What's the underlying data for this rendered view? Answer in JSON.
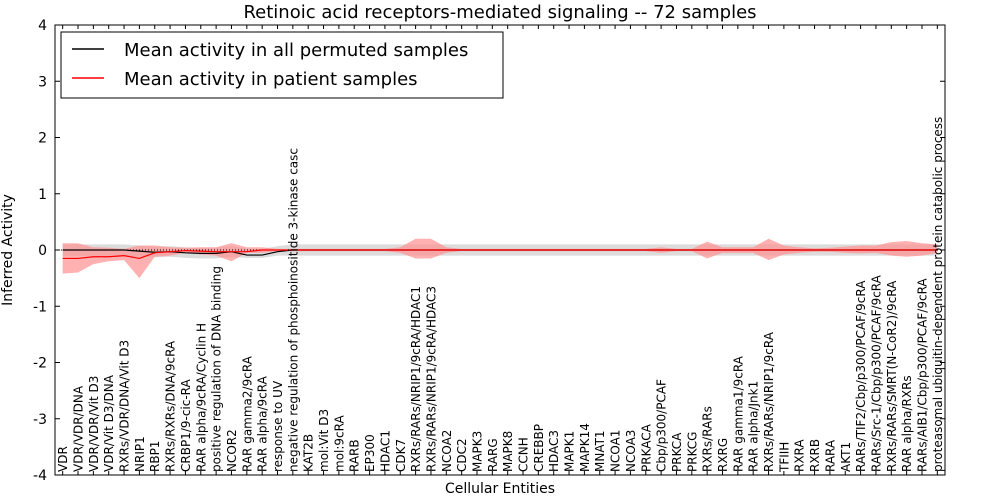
{
  "chart_data": {
    "type": "line",
    "title": "Retinoic acid receptors-mediated signaling -- 72 samples",
    "xlabel": "Cellular Entities",
    "ylabel": "Inferred Activity",
    "ylim": [
      -4,
      4
    ],
    "yticks": [
      -4,
      -3,
      -2,
      -1,
      0,
      1,
      2,
      3,
      4
    ],
    "legend_position": "top-left",
    "categories": [
      "VDR",
      "VDR/VDR/DNA",
      "VDR/VDR/Vit D3",
      "VDR/Vit D3/DNA",
      "RXRs/VDR/DNA/Vit D3",
      "NRIP1",
      "RBP1",
      "RXRs/RXRs/DNA/9cRA",
      "CRBP1/9-cic-RA",
      "RAR alpha/9cRA/Cyclin H",
      "positive regulation of DNA binding",
      "NCOR2",
      "RAR gamma2/9cRA",
      "RAR alpha/9cRA",
      "response to UV",
      "negative regulation of phosphoinositide 3-kinase casc",
      "KAT2B",
      "mol:Vit D3",
      "mol:9cRA",
      "RARB",
      "EP300",
      "HDAC1",
      "CDK7",
      "RXRs/RARs/NRIP1/9cRA/HDAC1",
      "RXRs/RARs/NRIP1/9cRA/HDAC3",
      "NCOA2",
      "CDC2",
      "MAPK3",
      "RARG",
      "MAPK8",
      "CCNH",
      "CREBBP",
      "HDAC3",
      "MAPK1",
      "MAPK14",
      "MNAT1",
      "NCOA1",
      "NCOA3",
      "PRKACA",
      "Cbp/p300/PCAF",
      "PRKCA",
      "PRKCG",
      "RXRs/RARs",
      "RXRG",
      "RAR gamma1/9cRA",
      "RAR alpha/Jnk1",
      "RXRs/RARs/NRIP1/9cRA",
      "TFIIH",
      "RXRA",
      "RXRB",
      "RARA",
      "AKT1",
      "RARs/TIF2/Cbp/p300/PCAF/9cRA",
      "RARs/Src-1/Cbp/p300/PCAF/9cRA",
      "RXRs/RARs/SMRT(N-CoR2)/9cRA",
      "RAR alpha/RXRs",
      "RARs/AIB1/Cbp/p300/PCAF/9cRA",
      "proteasomal ubiquitin-dependent protein catabolic process"
    ],
    "series": [
      {
        "name": "Mean activity in all permuted samples",
        "color": "#000000",
        "values": [
          0,
          0,
          0,
          0,
          0,
          -0.02,
          -0.04,
          -0.03,
          -0.05,
          -0.06,
          -0.06,
          -0.03,
          -0.09,
          -0.09,
          -0.03,
          0,
          0,
          0,
          0,
          0,
          0,
          0,
          0,
          0,
          0,
          0,
          0,
          0,
          0,
          0,
          0,
          0,
          0,
          0,
          0,
          0,
          0,
          0,
          0,
          0,
          0,
          0,
          0,
          0,
          0,
          0,
          0,
          0,
          0,
          0,
          0,
          0,
          0,
          0,
          0,
          0,
          0,
          0
        ],
        "band": {
          "color": "#c0c0c0",
          "lower": [
            -0.1,
            -0.1,
            -0.1,
            -0.1,
            -0.1,
            -0.12,
            -0.13,
            -0.12,
            -0.14,
            -0.15,
            -0.15,
            -0.12,
            -0.14,
            -0.14,
            -0.1,
            -0.1,
            -0.1,
            -0.1,
            -0.1,
            -0.1,
            -0.1,
            -0.1,
            -0.1,
            -0.1,
            -0.1,
            -0.1,
            -0.1,
            -0.1,
            -0.1,
            -0.1,
            -0.1,
            -0.1,
            -0.1,
            -0.1,
            -0.1,
            -0.1,
            -0.1,
            -0.1,
            -0.1,
            -0.1,
            -0.1,
            -0.1,
            -0.1,
            -0.1,
            -0.1,
            -0.1,
            -0.1,
            -0.1,
            -0.1,
            -0.1,
            -0.1,
            -0.1,
            -0.1,
            -0.1,
            -0.1,
            -0.1,
            -0.1,
            -0.1
          ],
          "upper": [
            0.1,
            0.1,
            0.1,
            0.1,
            0.1,
            0.08,
            0.06,
            0.07,
            0.05,
            0.04,
            0.04,
            0.07,
            0.02,
            0.02,
            0.07,
            0.1,
            0.1,
            0.1,
            0.1,
            0.1,
            0.1,
            0.1,
            0.1,
            0.1,
            0.1,
            0.1,
            0.1,
            0.1,
            0.1,
            0.1,
            0.1,
            0.1,
            0.1,
            0.1,
            0.1,
            0.1,
            0.1,
            0.1,
            0.1,
            0.1,
            0.1,
            0.1,
            0.1,
            0.1,
            0.1,
            0.1,
            0.1,
            0.1,
            0.1,
            0.1,
            0.1,
            0.1,
            0.1,
            0.1,
            0.1,
            0.1,
            0.1,
            0.1
          ]
        }
      },
      {
        "name": "Mean activity in patient samples",
        "color": "#ff0000",
        "values": [
          -0.15,
          -0.15,
          -0.12,
          -0.12,
          -0.1,
          -0.15,
          -0.05,
          -0.03,
          -0.01,
          -0.02,
          -0.03,
          -0.03,
          -0.03,
          0,
          0,
          0,
          0,
          0,
          0,
          0,
          0,
          0,
          0,
          0,
          0,
          0,
          0,
          0,
          0,
          0,
          0,
          0,
          0,
          0,
          0,
          0,
          0,
          0,
          0,
          0,
          0,
          0,
          0,
          0,
          0,
          0,
          0,
          0,
          0,
          0,
          0,
          0,
          0,
          0,
          0,
          0,
          0,
          0
        ],
        "band": {
          "color": "#ff9090",
          "lower": [
            -0.42,
            -0.4,
            -0.25,
            -0.2,
            -0.18,
            -0.5,
            -0.12,
            -0.1,
            -0.05,
            -0.08,
            -0.1,
            -0.2,
            -0.05,
            -0.05,
            -0.02,
            -0.02,
            -0.02,
            -0.02,
            -0.02,
            -0.02,
            -0.02,
            -0.02,
            -0.05,
            -0.15,
            -0.15,
            -0.05,
            -0.02,
            -0.02,
            -0.02,
            -0.02,
            -0.02,
            -0.02,
            -0.02,
            -0.02,
            -0.02,
            -0.02,
            -0.02,
            -0.02,
            -0.02,
            -0.05,
            -0.02,
            -0.02,
            -0.15,
            -0.05,
            -0.05,
            -0.05,
            -0.18,
            -0.08,
            -0.05,
            -0.03,
            -0.03,
            -0.05,
            -0.06,
            -0.05,
            -0.1,
            -0.12,
            -0.1,
            -0.05
          ],
          "upper": [
            0.12,
            0.12,
            0.05,
            0.04,
            0.02,
            0.08,
            0.08,
            0.05,
            0.04,
            0.05,
            0.05,
            0.12,
            0.05,
            0.05,
            0.02,
            0.02,
            0.02,
            0.02,
            0.02,
            0.02,
            0.02,
            0.02,
            0.05,
            0.2,
            0.2,
            0.05,
            0.02,
            0.02,
            0.02,
            0.02,
            0.02,
            0.02,
            0.02,
            0.02,
            0.02,
            0.02,
            0.02,
            0.02,
            0.02,
            0.05,
            0.02,
            0.02,
            0.15,
            0.05,
            0.05,
            0.05,
            0.2,
            0.08,
            0.05,
            0.03,
            0.04,
            0.06,
            0.08,
            0.08,
            0.14,
            0.16,
            0.12,
            0.1
          ]
        }
      }
    ]
  }
}
